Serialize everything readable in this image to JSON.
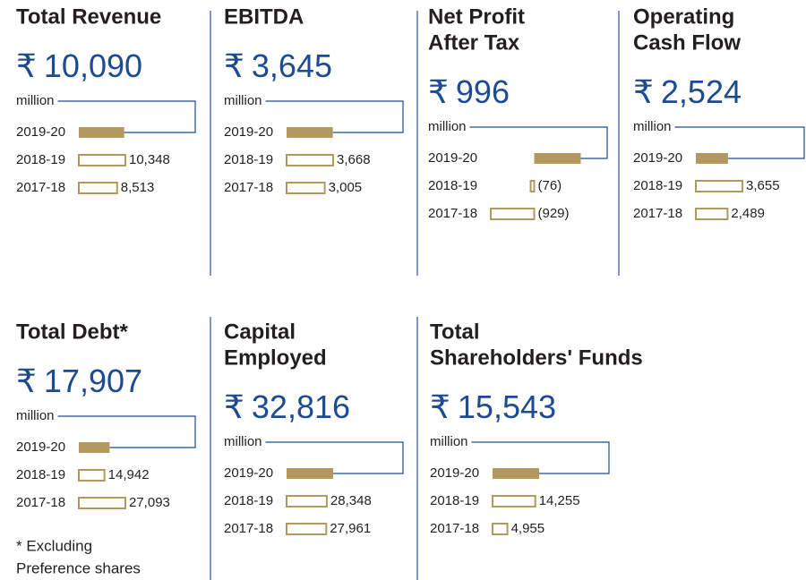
{
  "currency": "₹",
  "panels": [
    {
      "title": [
        "Total Revenue"
      ],
      "headline": "10,090",
      "unit": "million",
      "rows": [
        {
          "year": "2019-20",
          "value": 10090
        },
        {
          "year": "2018-19",
          "value": 10348,
          "label": "10,348"
        },
        {
          "year": "2017-18",
          "value": 8513,
          "label": "8,513"
        }
      ]
    },
    {
      "title": [
        "EBITDA"
      ],
      "headline": "3,645",
      "unit": "million",
      "rows": [
        {
          "year": "2019-20",
          "value": 3645
        },
        {
          "year": "2018-19",
          "value": 3668,
          "label": "3,668"
        },
        {
          "year": "2017-18",
          "value": 3005,
          "label": "3,005"
        }
      ]
    },
    {
      "title": [
        "Net Profit",
        "After Tax"
      ],
      "headline": "996",
      "unit": "million",
      "rows": [
        {
          "year": "2019-20",
          "value": 996
        },
        {
          "year": "2018-19",
          "value": -76,
          "label": "(76)"
        },
        {
          "year": "2017-18",
          "value": -929,
          "label": "(929)"
        }
      ]
    },
    {
      "title": [
        "Operating",
        "Cash Flow"
      ],
      "headline": "2,524",
      "unit": "million",
      "rows": [
        {
          "year": "2019-20",
          "value": 2524
        },
        {
          "year": "2018-19",
          "value": 3655,
          "label": "3,655"
        },
        {
          "year": "2017-18",
          "value": 2489,
          "label": "2,489"
        }
      ]
    },
    {
      "title": [
        "Total Debt*"
      ],
      "headline": "17,907",
      "unit": "million",
      "rows": [
        {
          "year": "2019-20",
          "value": 17907
        },
        {
          "year": "2018-19",
          "value": 14942,
          "label": "14,942"
        },
        {
          "year": "2017-18",
          "value": 27093,
          "label": "27,093"
        }
      ]
    },
    {
      "title": [
        "Capital",
        "Employed"
      ],
      "headline": "32,816",
      "unit": "million",
      "rows": [
        {
          "year": "2019-20",
          "value": 32816
        },
        {
          "year": "2018-19",
          "value": 28348,
          "label": "28,348"
        },
        {
          "year": "2017-18",
          "value": 27961,
          "label": "27,961"
        }
      ]
    },
    {
      "title": [
        "Total",
        "Shareholders' Funds"
      ],
      "headline": "15,543",
      "unit": "million",
      "rows": [
        {
          "year": "2019-20",
          "value": 15543
        },
        {
          "year": "2018-19",
          "value": 14255,
          "label": "14,255"
        },
        {
          "year": "2017-18",
          "value": 4955,
          "label": "4,955"
        }
      ]
    }
  ],
  "footnote": [
    "* Excluding",
    "Preference shares"
  ]
}
